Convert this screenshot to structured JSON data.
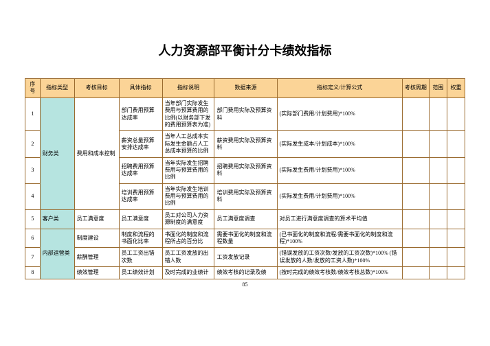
{
  "title": "人力资源部平衡计分卡绩效指标",
  "page_number": "85",
  "columns": {
    "seq": "序号",
    "type": "指标类型",
    "goal": "考核目标",
    "indicator": "具体指标",
    "desc": "指标说明",
    "source": "数据来源",
    "formula": "指标定义/计算公式",
    "period": "考核周期",
    "scope": "范围",
    "weight": "权重"
  },
  "rows": [
    {
      "seq": "1",
      "type": "财务类",
      "type_rowspan": 4,
      "goal": "费用和成本控制",
      "goal_rowspan": 4,
      "indicator": "部门费用预算达成率",
      "desc": "当年部门实际发生费用与预算费用的比例(以财务部下发的费用预算表为准)",
      "source": "部门费用实际及预算资料",
      "formula": "(实际部门费用/计划费用)*100%"
    },
    {
      "seq": "2",
      "indicator": "薪资总量预算安排达成率",
      "desc": "当年人工总成本实际发生金额占人工总成本预算的比例",
      "source": "薪资费用实际及预算资料",
      "formula": "(实际发生成本/计划成本)*100%"
    },
    {
      "seq": "3",
      "indicator": "招聘费用预算达成率",
      "desc": "当年实际发生招聘费用与预算费用的比例",
      "source": "招聘费用实际及预算资料",
      "formula": "(实际发生费用/计划费用)*100%"
    },
    {
      "seq": "4",
      "indicator": "培训费用预算达成率",
      "desc": "当年实际发生培训费用与预算费用的比例",
      "source": "培训费用实际及预算资料",
      "formula": "(实际发生费用/计划费用)*100%"
    },
    {
      "seq": "5",
      "type": "客户类",
      "type_rowspan": 1,
      "goal": "员工满意度",
      "indicator": "员工满意度",
      "desc": "员工对公司人力资源制度的满意度",
      "source": "员工满意度调查",
      "formula": "对员工进行满意度调查的算术平均值"
    },
    {
      "seq": "6",
      "type": "内部运营类",
      "type_rowspan": 3,
      "goal": "制度建设",
      "indicator": "制度和流程的书面化比率",
      "desc": "书面化的制度和流程所占的百分比",
      "source": "需要书面化的制度和流程数量",
      "formula": "(已书面化的制度和流程/需要书面化的制度和流程)*100%"
    },
    {
      "seq": "7",
      "goal": "薪酬管理",
      "indicator": "员工工资出错次数",
      "desc": "员工工资发放的出错人数",
      "source": "工资发放记录",
      "formula": "(错误发放的工资次数/发放的工资次数)*100% (错误发放的人数/发放的工资人数)*100%"
    },
    {
      "seq": "8",
      "goal": "绩效管理",
      "indicator": "员工绩效计划",
      "desc": "及时完成的业绩计",
      "source": "绩效考核的记录及绩",
      "formula": "(按时完成的绩效考核数/绩效考核总数)*100%"
    }
  ]
}
